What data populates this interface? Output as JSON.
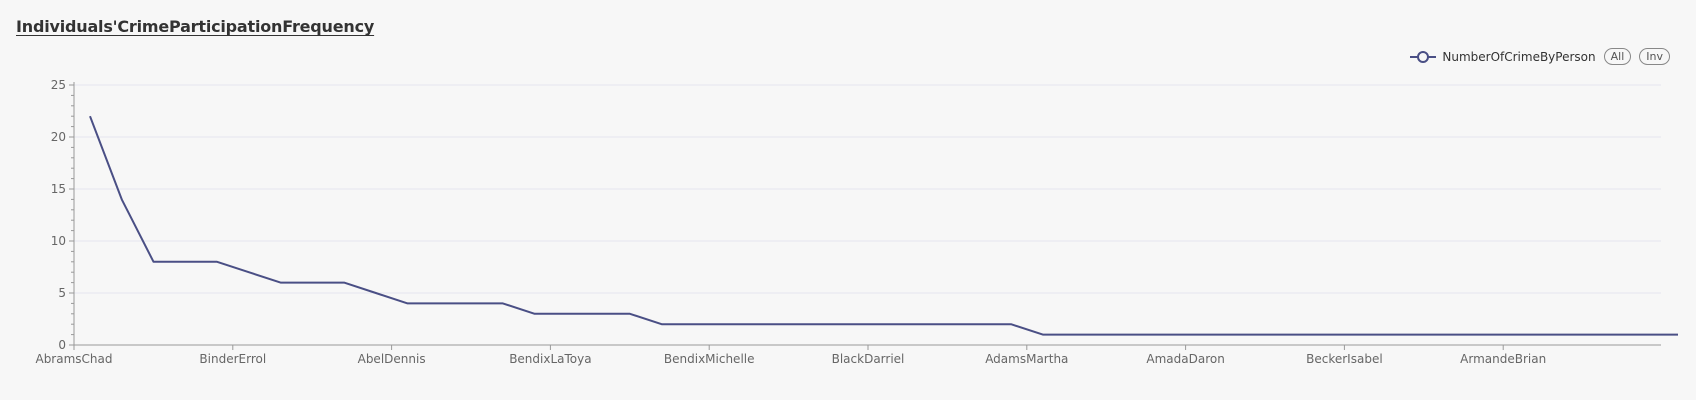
{
  "title": "Individuals'CrimeParticipationFrequency",
  "legend": {
    "series_label": "NumberOfCrimeByPerson",
    "all_label": "All",
    "inv_label": "Inv"
  },
  "colors": {
    "line": "#4a4f85",
    "grid": "#e4e6ef",
    "axis": "#999999",
    "background": "#f7f7f7"
  },
  "chart_data": {
    "type": "line",
    "title": "Individuals'CrimeParticipationFrequency",
    "xlabel": "",
    "ylabel": "",
    "ylim": [
      0,
      25
    ],
    "yticks": [
      0,
      5,
      10,
      15,
      20,
      25
    ],
    "grid": true,
    "legend_position": "top-right",
    "categories": [
      "AbramsChad",
      "",
      "",
      "",
      "",
      "BinderErrol",
      "",
      "",
      "",
      "",
      "AbelDennis",
      "",
      "",
      "",
      "",
      "BendixLaToya",
      "",
      "",
      "",
      "",
      "BendixMichelle",
      "",
      "",
      "",
      "",
      "BlackDarriel",
      "",
      "",
      "",
      "",
      "AdamsMartha",
      "",
      "",
      "",
      "",
      "AmadaDaron",
      "",
      "",
      "",
      "",
      "BeckerIsabel",
      "",
      "",
      "",
      "",
      "ArmandeBrian",
      "",
      "",
      "",
      "",
      ""
    ],
    "x_tick_labels": [
      "AbramsChad",
      "BinderErrol",
      "AbelDennis",
      "BendixLaToya",
      "BendixMichelle",
      "BlackDarriel",
      "AdamsMartha",
      "AmadaDaron",
      "BeckerIsabel",
      "ArmandeBrian"
    ],
    "series": [
      {
        "name": "NumberOfCrimeByPerson",
        "values": [
          22,
          14,
          8,
          8,
          8,
          7,
          6,
          6,
          6,
          5,
          4,
          4,
          4,
          4,
          3,
          3,
          3,
          3,
          2,
          2,
          2,
          2,
          2,
          2,
          2,
          2,
          2,
          2,
          2,
          2,
          1,
          1,
          1,
          1,
          1,
          1,
          1,
          1,
          1,
          1,
          1,
          1,
          1,
          1,
          1,
          1,
          1,
          1,
          1,
          1,
          1
        ]
      }
    ]
  }
}
